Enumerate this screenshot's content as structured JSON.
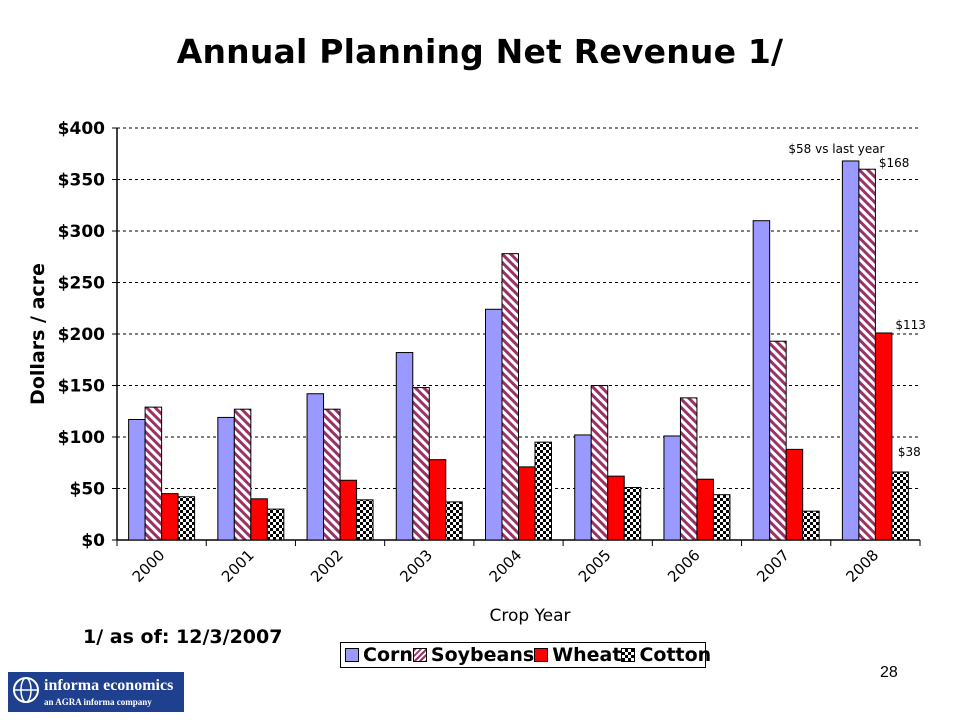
{
  "slide": {
    "footnote": "1/ as of: 12/3/2007",
    "page_number": "28",
    "logo": {
      "name": "informa economics",
      "tagline": "an AGRA informa company"
    }
  },
  "colors": {
    "corn": "#9999ff",
    "soybeans_stripe": "#993366",
    "wheat": "#ff0000",
    "cotton_pattern": "#000000",
    "grid": "#000000"
  },
  "chart_data": {
    "type": "bar",
    "title": "Annual Planning Net Revenue 1/",
    "xlabel": "Crop Year",
    "ylabel": "Dollars / acre",
    "ylim": [
      0,
      400
    ],
    "yticks": [
      0,
      50,
      100,
      150,
      200,
      250,
      300,
      350,
      400
    ],
    "ytick_labels": [
      "$0",
      "$50",
      "$100",
      "$150",
      "$200",
      "$250",
      "$300",
      "$350",
      "$400"
    ],
    "grid": "horizontal dashed",
    "legend": "bottom",
    "categories": [
      "2000",
      "2001",
      "2002",
      "2003",
      "2004",
      "2005",
      "2006",
      "2007",
      "2008"
    ],
    "series": [
      {
        "name": "Corn",
        "pattern": "solid",
        "values": [
          117,
          119,
          142,
          182,
          224,
          102,
          101,
          310,
          368
        ]
      },
      {
        "name": "Soybeans",
        "pattern": "diagonal-stripes",
        "values": [
          129,
          127,
          127,
          148,
          278,
          150,
          138,
          193,
          360
        ]
      },
      {
        "name": "Wheat",
        "pattern": "solid",
        "values": [
          45,
          40,
          58,
          78,
          71,
          62,
          59,
          88,
          201
        ]
      },
      {
        "name": "Cotton",
        "pattern": "checker-diamonds",
        "values": [
          42,
          30,
          39,
          37,
          95,
          51,
          44,
          28,
          66
        ]
      }
    ],
    "annotations": [
      {
        "text": "$58 vs last year",
        "category": "2008",
        "series": "Corn"
      },
      {
        "text": "$168",
        "category": "2008",
        "series": "Soybeans"
      },
      {
        "text": "$113",
        "category": "2008",
        "series": "Wheat"
      },
      {
        "text": "$38",
        "category": "2008",
        "series": "Cotton"
      }
    ]
  }
}
